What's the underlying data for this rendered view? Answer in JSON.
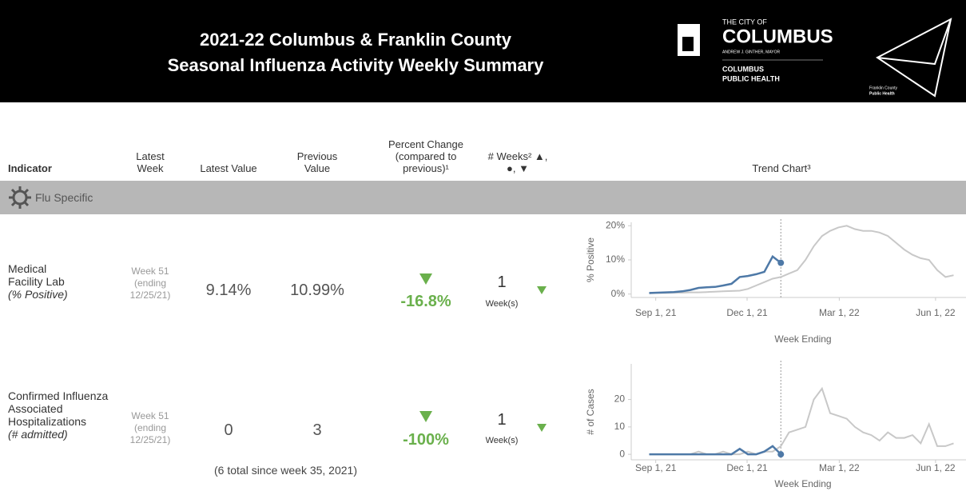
{
  "header": {
    "title_lines": [
      "2021-22 Columbus & Franklin County",
      "Seasonal Influenza Activity Weekly Summary"
    ],
    "logo_columbus": {
      "line1": "THE CITY OF",
      "name": "COLUMBUS",
      "mayor": "ANDREW J. GINTHER, MAYOR",
      "dept_lines": [
        "COLUMBUS",
        "PUBLIC HEALTH"
      ]
    },
    "logo_franklin": [
      "Franklin County",
      "Public Health"
    ]
  },
  "columns": [
    "Indicator",
    "Latest Week",
    "Latest Value",
    "Previous Value",
    "Percent Change (compared to previous)¹",
    "# Weeks² ▲, ●, ▼",
    "Trend Chart³"
  ],
  "section": "Flu Specific",
  "rows": [
    {
      "indicator": "Medical Facility Lab",
      "unit": "(% Positive)",
      "latest_week": "Week 51",
      "latest_week_note": "(ending 12/25/21)",
      "latest_value": "9.14%",
      "previous_value": "10.99%",
      "percent_change": "-16.8%",
      "weeks": "1",
      "weeks_unit": "Week(s)",
      "chart": {
        "type": "line",
        "y_label": "% Positive",
        "x_label": "Week Ending",
        "xlim": [
          -1.5,
          38.5
        ],
        "ylim": [
          -1,
          21
        ],
        "yticks": [
          {
            "value": 0,
            "label": "0%"
          },
          {
            "value": 10,
            "label": "10%"
          },
          {
            "value": 20,
            "label": "20%"
          }
        ],
        "xticks": [
          {
            "value": 0.8,
            "label": "Sep 1, 21"
          },
          {
            "value": 11.9,
            "label": "Dec 1, 21"
          },
          {
            "value": 23.1,
            "label": "Mar 1, 22"
          },
          {
            "value": 34.8,
            "label": "Jun 1, 22"
          }
        ],
        "series": [
          {
            "color": "#c8c8c8",
            "values": [
              0.2,
              0.3,
              0.3,
              0.4,
              0.4,
              0.5,
              0.5,
              0.6,
              0.7,
              0.8,
              0.9,
              1.0,
              1.5,
              2.5,
              3.5,
              4.5,
              5,
              6,
              7,
              10,
              14,
              17,
              18.5,
              19.5,
              20,
              19,
              18.5,
              18.5,
              18,
              17,
              15,
              13,
              11.5,
              10.5,
              10,
              7,
              5,
              5.5
            ]
          },
          {
            "color": "#4e79a7",
            "values": [
              0.3,
              0.4,
              0.5,
              0.6,
              0.8,
              1.2,
              1.8,
              2.0,
              2.1,
              2.5,
              3.0,
              5.0,
              5.3,
              5.8,
              6.5,
              10.99,
              9.14
            ]
          }
        ]
      }
    },
    {
      "indicator": "Confirmed Influenza Associated Hospitalizations",
      "unit": "(# admitted)",
      "latest_week": "Week 51",
      "latest_week_note": "(ending 12/25/21)",
      "latest_value": "0",
      "previous_value": "3",
      "percent_change": "-100%",
      "weeks": "1",
      "weeks_unit": "Week(s)",
      "footnote": "(6 total since week 35, 2021)",
      "chart": {
        "type": "line",
        "y_label": "# of Cases",
        "x_label": "Week Ending",
        "xlim": [
          -1.5,
          38.5
        ],
        "ylim": [
          -2,
          33
        ],
        "yticks": [
          0,
          10,
          20
        ],
        "xticks": [
          {
            "value": 0.8,
            "label": "Sep 1, 21"
          },
          {
            "value": 11.9,
            "label": "Dec 1, 21"
          },
          {
            "value": 23.1,
            "label": "Mar 1, 22"
          },
          {
            "value": 34.8,
            "label": "Jun 1, 22"
          }
        ],
        "series": [
          {
            "color": "#c8c8c8",
            "values": [
              0,
              0,
              0,
              0,
              0,
              0,
              1,
              0,
              0,
              1,
              0,
              0,
              1,
              0,
              1,
              1,
              3,
              8,
              9,
              10,
              20,
              24,
              15,
              14,
              13,
              10,
              8,
              7,
              5,
              8,
              6,
              6,
              7,
              4,
              11,
              3,
              3,
              4
            ]
          },
          {
            "color": "#4e79a7",
            "values": [
              0,
              0,
              0,
              0,
              0,
              0,
              0,
              0,
              0,
              0,
              0,
              2,
              0,
              0,
              1,
              3,
              0
            ]
          }
        ]
      }
    }
  ]
}
